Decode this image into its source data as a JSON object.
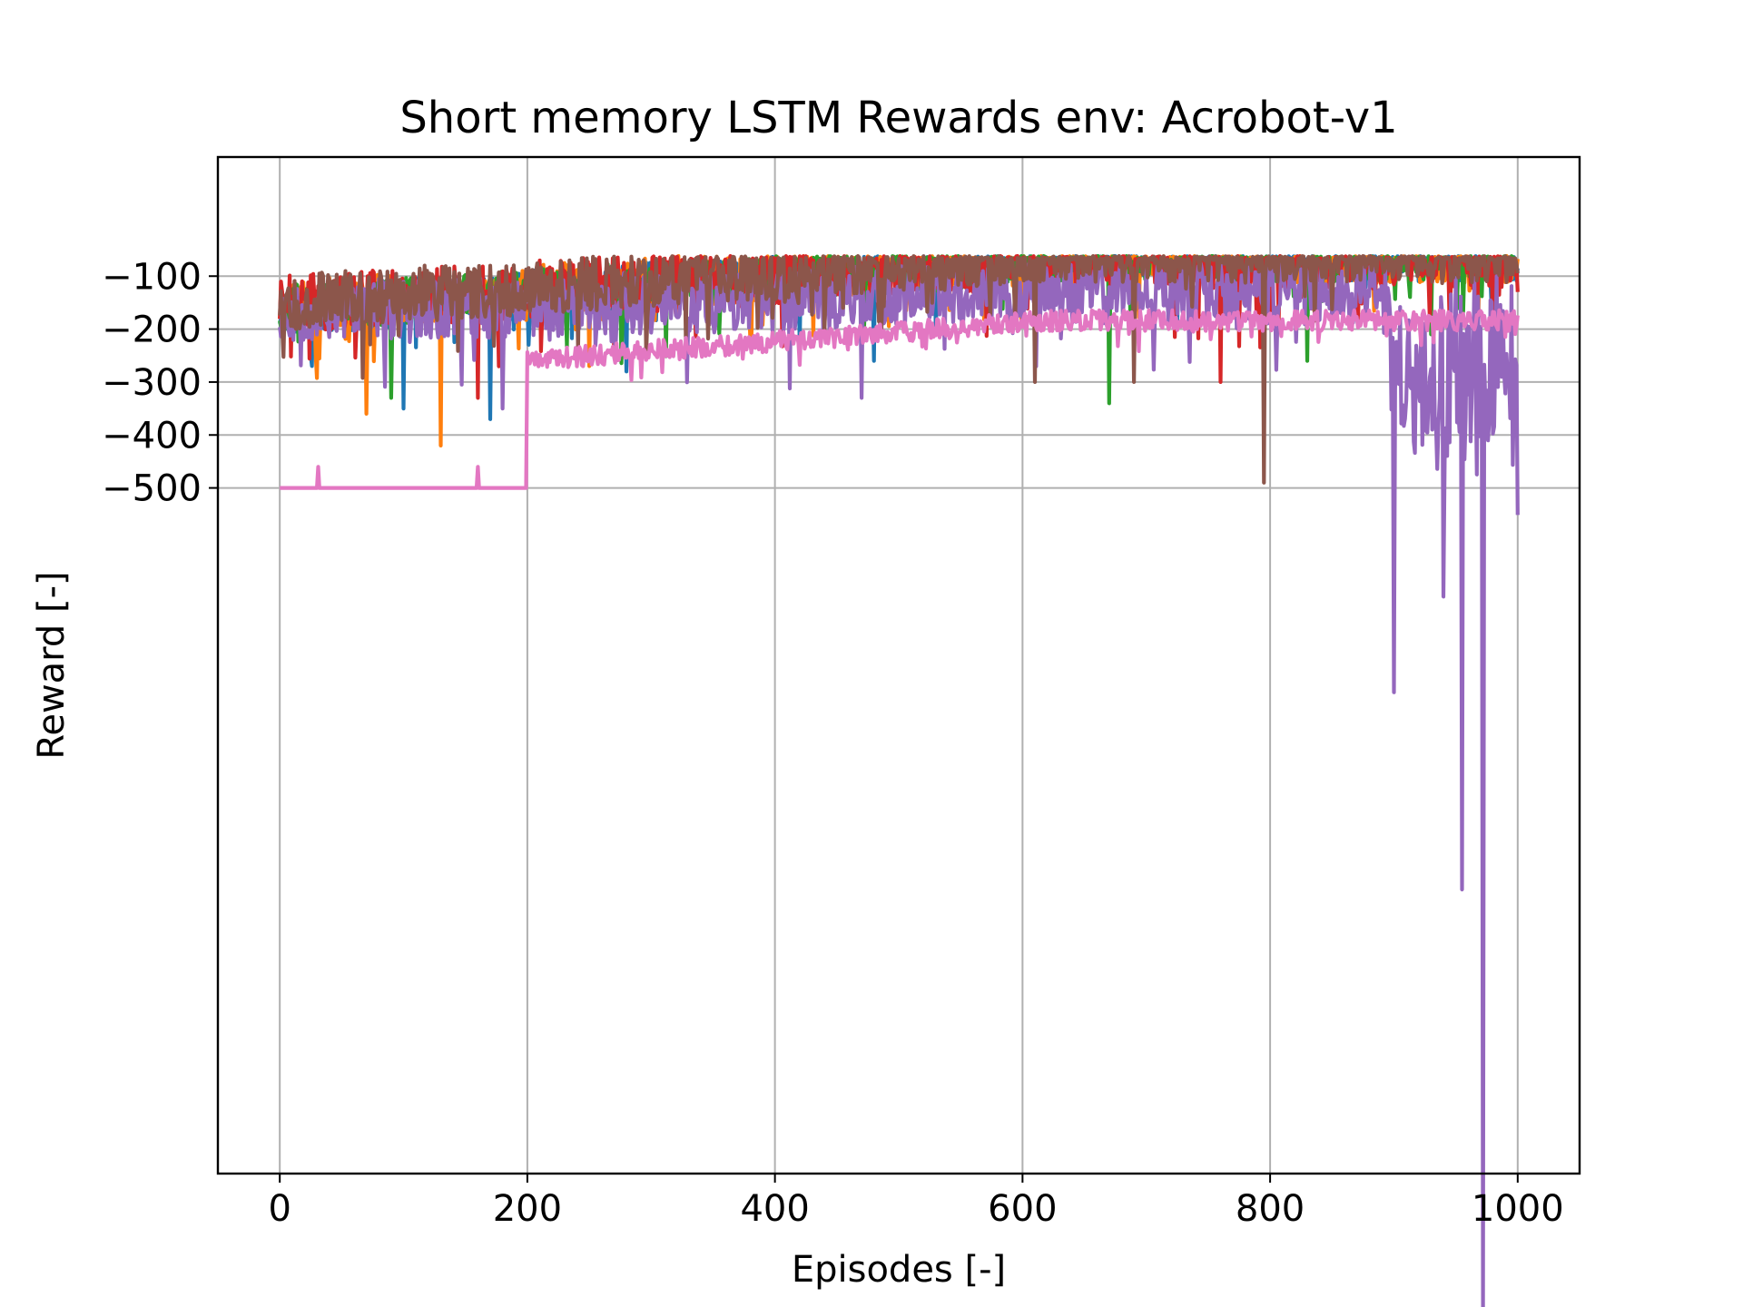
{
  "chart_data": {
    "type": "line",
    "title": "Short memory LSTM Rewards env: Acrobot-v1",
    "xlabel": "Episodes [-]",
    "ylabel": "Reward [-]",
    "xlim": [
      -50,
      1050
    ],
    "ylim": [
      -1795,
      125
    ],
    "x_ticks": [
      0,
      200,
      400,
      600,
      800,
      1000
    ],
    "x_tick_labels": [
      "0",
      "200",
      "400",
      "600",
      "800",
      "1000"
    ],
    "y_ticks": [
      -100,
      -200,
      -300,
      -400,
      -500
    ],
    "y_tick_labels": [
      "−100",
      "−200",
      "−300",
      "−400",
      "−500"
    ],
    "grid": true,
    "legend": "none",
    "n_episodes": 1001,
    "series": [
      {
        "color": "#1f77b4",
        "start": -180,
        "end": -80,
        "noise": 90,
        "dips": [
          [
            100,
            350
          ],
          [
            170,
            370
          ],
          [
            280,
            280
          ],
          [
            480,
            260
          ]
        ],
        "seed": 11
      },
      {
        "color": "#ff7f0e",
        "start": -170,
        "end": -80,
        "noise": 95,
        "dips": [
          [
            70,
            360
          ],
          [
            130,
            420
          ],
          [
            250,
            270
          ],
          [
            600,
            180
          ]
        ],
        "seed": 23
      },
      {
        "color": "#2ca02c",
        "start": -175,
        "end": -80,
        "noise": 90,
        "dips": [
          [
            90,
            330
          ],
          [
            670,
            340
          ],
          [
            830,
            260
          ],
          [
            930,
            210
          ]
        ],
        "seed": 37
      },
      {
        "color": "#d62728",
        "start": -170,
        "end": -85,
        "noise": 110,
        "dips": [
          [
            160,
            330
          ],
          [
            760,
            300
          ],
          [
            980,
            240
          ]
        ],
        "seed": 41
      },
      {
        "color": "#9467bd",
        "start": -185,
        "end": -150,
        "noise": 120,
        "dips": [
          [
            180,
            350
          ],
          [
            470,
            330
          ],
          [
            900,
            620
          ],
          [
            955,
            1010
          ],
          [
            972,
            1800
          ],
          [
            940,
            520
          ],
          [
            1000,
            420
          ]
        ],
        "seed": 53
      },
      {
        "color": "#8c564b",
        "start": -165,
        "end": -75,
        "noise": 105,
        "dips": [
          [
            795,
            490
          ],
          [
            610,
            300
          ],
          [
            690,
            300
          ]
        ],
        "seed": 67
      },
      {
        "color": "#e377c2",
        "start": -300,
        "end": -190,
        "noise": 40,
        "dips": [],
        "seed": 79
      }
    ]
  }
}
